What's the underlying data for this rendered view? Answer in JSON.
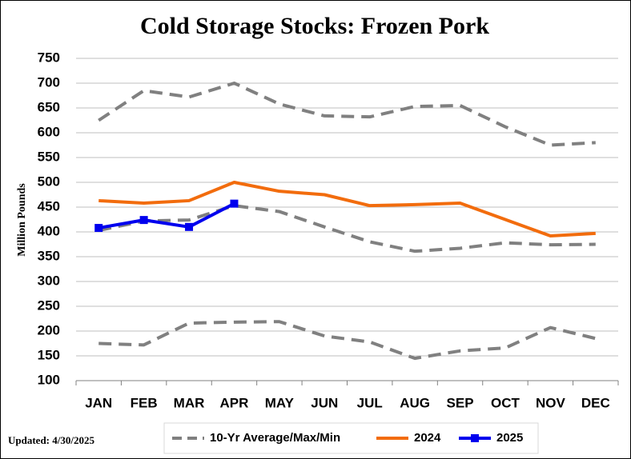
{
  "chart_data": {
    "type": "line",
    "title": "Cold Storage Stocks: Frozen Pork",
    "y_label": "Million Pounds",
    "note": "Updated: 4/30/2025",
    "categories": [
      "JAN",
      "FEB",
      "MAR",
      "APR",
      "MAY",
      "JUN",
      "JUL",
      "AUG",
      "SEP",
      "OCT",
      "NOV",
      "DEC"
    ],
    "ylim": [
      100,
      750
    ],
    "yticks": [
      100,
      150,
      200,
      250,
      300,
      350,
      400,
      450,
      500,
      550,
      600,
      650,
      700,
      750
    ],
    "grid": true,
    "ten_year": {
      "name": "10-Yr Average/Max/Min",
      "color": "#808080",
      "max": [
        625,
        685,
        672,
        700,
        658,
        634,
        632,
        653,
        655,
        612,
        575,
        580
      ],
      "average": [
        403,
        422,
        424,
        453,
        441,
        410,
        380,
        361,
        367,
        378,
        374,
        375
      ],
      "min": [
        175,
        172,
        216,
        218,
        219,
        190,
        178,
        145,
        160,
        166,
        207,
        185
      ]
    },
    "series": [
      {
        "name": "2024",
        "color": "#f26c0d",
        "values": [
          463,
          458,
          463,
          500,
          482,
          475,
          453,
          455,
          458,
          425,
          392,
          397
        ]
      },
      {
        "name": "2025",
        "color": "#0000ee",
        "marker": "square",
        "values": [
          408,
          424,
          410,
          457,
          null,
          null,
          null,
          null,
          null,
          null,
          null,
          null
        ]
      }
    ]
  }
}
